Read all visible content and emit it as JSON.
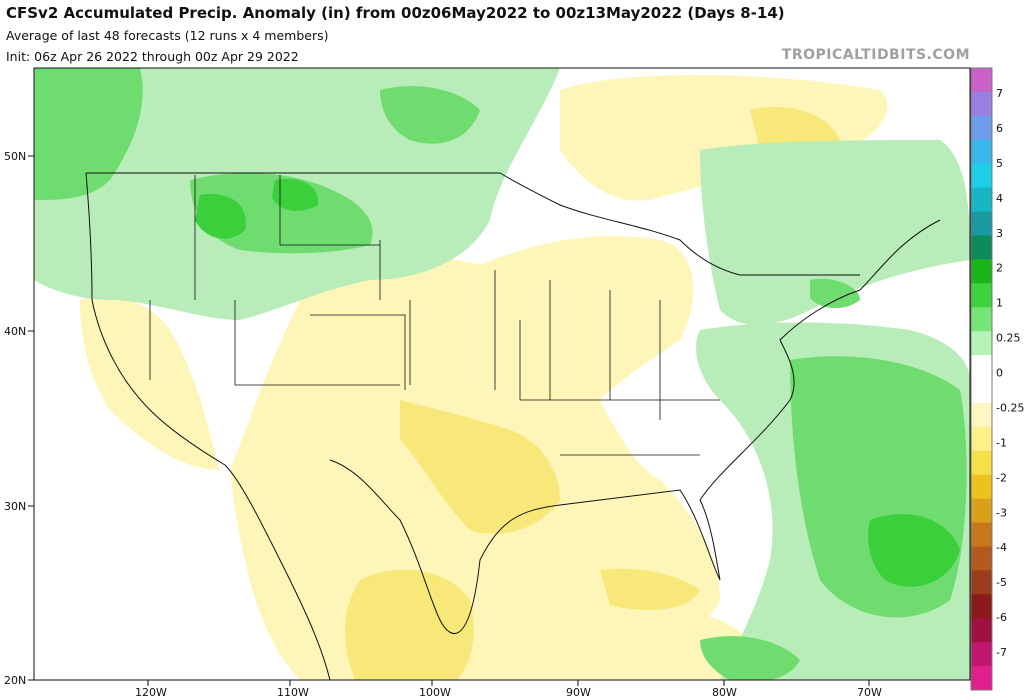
{
  "header": {
    "title": "CFSv2 Accumulated Precip. Anomaly (in) from 00z06May2022 to 00z13May2022 (Days 8-14)",
    "subtitle": "Average of last 48 forecasts (12 runs x 4 members)",
    "init": "Init: 06z Apr 26 2022 through 00z Apr 29 2022",
    "credit": "TROPICALTIDBITS.COM"
  },
  "axes": {
    "lat_labels": [
      "50N",
      "40N",
      "30N",
      "20N"
    ],
    "lon_labels": [
      "120W",
      "110W",
      "100W",
      "90W",
      "80W",
      "70W"
    ]
  },
  "colorbar": {
    "labels": [
      "7",
      "6",
      "5",
      "4",
      "3",
      "2",
      "1",
      "0.25",
      "0",
      "-0.25",
      "-1",
      "-2",
      "-3",
      "-4",
      "-5",
      "-6",
      "-7"
    ],
    "colors": [
      "#c862c8",
      "#9a7ee0",
      "#6f9bea",
      "#3bb6ea",
      "#1ecde6",
      "#16b6c4",
      "#1a9aa0",
      "#0f8a5a",
      "#19b51b",
      "#3fd23f",
      "#76e476",
      "#b7f2b7",
      "#ffffff",
      "#ffffff",
      "#fff7bf",
      "#fdf08a",
      "#f5e04a",
      "#ecc21d",
      "#dba01a",
      "#c8781c",
      "#b45a1e",
      "#9c3c1e",
      "#8c1a1a",
      "#a01040",
      "#c01870",
      "#e0208c"
    ]
  }
}
